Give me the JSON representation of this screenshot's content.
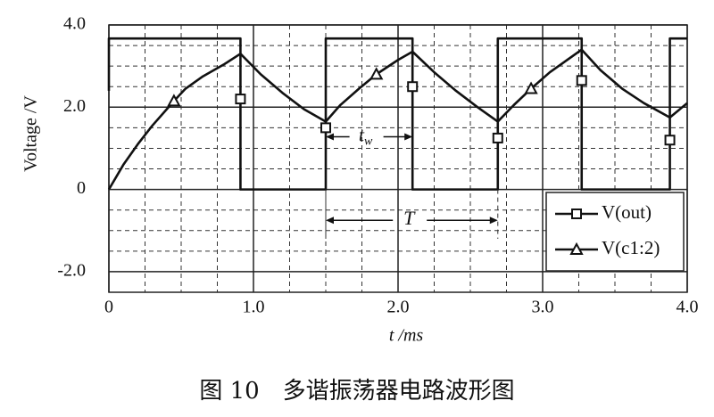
{
  "chart_data": {
    "type": "line",
    "caption": "图 10　多谐振荡器电路波形图",
    "x_label": "t /ms",
    "y_label": "Voltage /V",
    "xlim": [
      0,
      4.0
    ],
    "ylim": [
      -2.5,
      4.0
    ],
    "xticks": [
      0,
      {
        "value": 1,
        "label": "1.0"
      },
      {
        "value": 2,
        "label": "2.0"
      },
      {
        "value": 3,
        "label": "3.0"
      },
      {
        "value": 4,
        "label": "4.0"
      }
    ],
    "yticks": [
      {
        "value": -2,
        "label": "-2.0"
      },
      0,
      {
        "value": 2,
        "label": "2.0"
      },
      {
        "value": 4,
        "label": "4.0"
      }
    ],
    "grid": true,
    "legend": "lower right",
    "annotations": [
      {
        "text": "t",
        "subscript": "w"
      },
      {
        "text": "T"
      }
    ],
    "series": [
      {
        "name": "V(out)",
        "color": "#111111",
        "marker": "square",
        "x": [
          0,
          0,
          0.91,
          0.91,
          0.91,
          1.5,
          1.5,
          1.5,
          2.1,
          2.1,
          2.1,
          2.69,
          2.69,
          2.69,
          3.27,
          3.27,
          3.27,
          3.88,
          3.88,
          3.88,
          4.0
        ],
        "values": [
          2.4,
          3.67,
          3.67,
          2.2,
          0,
          0,
          1.5,
          3.67,
          3.67,
          2.5,
          0,
          0,
          1.25,
          3.67,
          3.67,
          2.65,
          0,
          0,
          1.2,
          3.67,
          3.67
        ]
      },
      {
        "name": "V(c1:2)",
        "color": "#111111",
        "marker": "triangle",
        "x": [
          0,
          0.1,
          0.2,
          0.3,
          0.45,
          0.53,
          0.65,
          0.8,
          0.91,
          1.05,
          1.2,
          1.35,
          1.5,
          1.6,
          1.73,
          1.85,
          2.0,
          2.1,
          2.25,
          2.4,
          2.55,
          2.69,
          2.8,
          2.92,
          3.05,
          3.15,
          3.27,
          3.4,
          3.55,
          3.7,
          3.88,
          4.0
        ],
        "values": [
          0,
          0.6,
          1.1,
          1.55,
          2.15,
          2.45,
          2.75,
          3.05,
          3.3,
          2.8,
          2.35,
          1.95,
          1.65,
          2.05,
          2.45,
          2.8,
          3.15,
          3.35,
          2.85,
          2.4,
          2.0,
          1.65,
          2.05,
          2.45,
          2.85,
          3.1,
          3.4,
          2.9,
          2.45,
          2.1,
          1.75,
          2.1
        ]
      }
    ]
  }
}
